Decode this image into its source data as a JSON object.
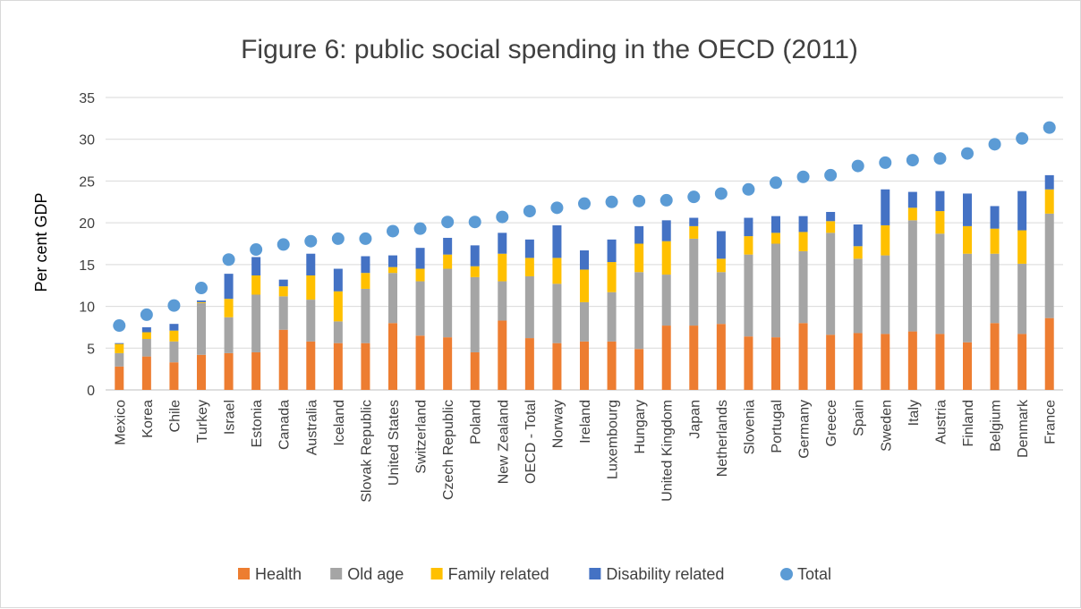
{
  "chart_data": {
    "type": "bar",
    "subtype": "stacked-with-total-markers",
    "title": "Figure 6: public social spending in the OECD (2011)",
    "xlabel": "",
    "ylabel": "Per cent GDP",
    "ylim": [
      0,
      35
    ],
    "yticks": [
      0,
      5,
      10,
      15,
      20,
      25,
      30,
      35
    ],
    "grid": "horizontal",
    "legend_position": "bottom",
    "categories": [
      "Mexico",
      "Korea",
      "Chile",
      "Turkey",
      "Israel",
      "Estonia",
      "Canada",
      "Australia",
      "Iceland",
      "Slovak Republic",
      "United States",
      "Switzerland",
      "Czech Republic",
      "Poland",
      "New Zealand",
      "OECD - Total",
      "Norway",
      "Ireland",
      "Luxembourg",
      "Hungary",
      "United Kingdom",
      "Japan",
      "Netherlands",
      "Slovenia",
      "Portugal",
      "Germany",
      "Greece",
      "Spain",
      "Sweden",
      "Italy",
      "Austria",
      "Finland",
      "Belgium",
      "Denmark",
      "France"
    ],
    "series": [
      {
        "name": "Health",
        "color": "#ed7d31",
        "kind": "bar",
        "values": [
          2.8,
          4.0,
          3.3,
          4.2,
          4.4,
          4.5,
          7.2,
          5.8,
          5.6,
          5.6,
          8.0,
          6.5,
          6.3,
          4.5,
          8.3,
          6.2,
          5.6,
          5.8,
          5.8,
          4.9,
          7.7,
          7.7,
          7.9,
          6.4,
          6.3,
          8.0,
          6.6,
          6.8,
          6.7,
          7.0,
          6.7,
          5.7,
          8.0,
          6.7,
          8.6
        ]
      },
      {
        "name": "Old age",
        "color": "#a5a5a5",
        "kind": "bar",
        "values": [
          1.6,
          2.1,
          2.5,
          6.2,
          4.3,
          6.9,
          4.0,
          5.0,
          2.6,
          6.5,
          6.0,
          6.5,
          8.2,
          9.0,
          4.7,
          7.4,
          7.1,
          4.7,
          5.9,
          9.2,
          6.1,
          10.4,
          6.2,
          9.8,
          11.2,
          8.6,
          12.2,
          8.9,
          9.4,
          13.3,
          12.0,
          10.6,
          8.3,
          8.4,
          12.5
        ]
      },
      {
        "name": "Family related",
        "color": "#ffc000",
        "kind": "bar",
        "values": [
          1.1,
          0.8,
          1.3,
          0.1,
          2.2,
          2.3,
          1.2,
          2.9,
          3.6,
          1.9,
          0.7,
          1.5,
          1.7,
          1.3,
          3.3,
          2.2,
          3.1,
          3.9,
          3.6,
          3.4,
          4.0,
          1.5,
          1.6,
          2.2,
          1.3,
          2.3,
          1.4,
          1.5,
          3.6,
          1.5,
          2.7,
          3.3,
          3.0,
          4.0,
          2.9
        ]
      },
      {
        "name": "Disability related",
        "color": "#4472c4",
        "kind": "bar",
        "values": [
          0.1,
          0.6,
          0.8,
          0.2,
          3.0,
          2.2,
          0.8,
          2.6,
          2.7,
          2.0,
          1.4,
          2.5,
          2.0,
          2.5,
          2.5,
          2.2,
          3.9,
          2.3,
          2.7,
          2.1,
          2.5,
          1.0,
          3.3,
          2.2,
          2.0,
          1.9,
          1.1,
          2.6,
          4.3,
          1.9,
          2.4,
          3.9,
          2.7,
          4.7,
          1.7
        ]
      },
      {
        "name": "Total",
        "color": "#5b9bd5",
        "kind": "marker",
        "values": [
          7.7,
          9.0,
          10.1,
          12.2,
          15.6,
          16.8,
          17.4,
          17.8,
          18.1,
          18.1,
          19.0,
          19.3,
          20.1,
          20.1,
          20.7,
          21.4,
          21.8,
          22.3,
          22.5,
          22.6,
          22.7,
          23.1,
          23.5,
          24.0,
          24.8,
          25.5,
          25.7,
          26.8,
          27.2,
          27.5,
          27.7,
          28.3,
          29.4,
          30.1,
          31.4
        ]
      }
    ]
  }
}
